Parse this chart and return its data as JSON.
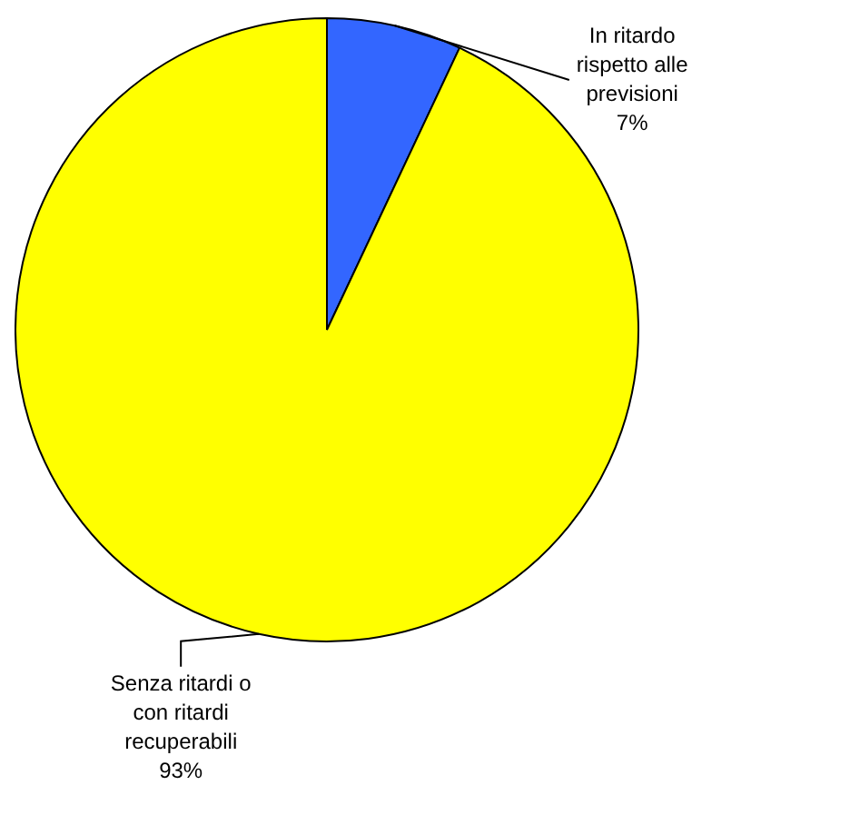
{
  "chart_data": {
    "type": "pie",
    "categories": [
      "In ritardo rispetto alle previsioni",
      "Senza ritardi o con ritardi recuperabili"
    ],
    "values": [
      7,
      93
    ],
    "colors": [
      "#3366ff",
      "#ffff00"
    ],
    "value_labels": [
      "7%",
      "93%"
    ],
    "legend": false
  }
}
